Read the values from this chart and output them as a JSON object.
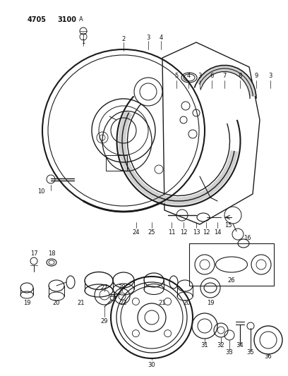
{
  "bg_color": "#ffffff",
  "line_color": "#1a1a1a",
  "fig_width": 4.08,
  "fig_height": 5.33,
  "dpi": 100
}
